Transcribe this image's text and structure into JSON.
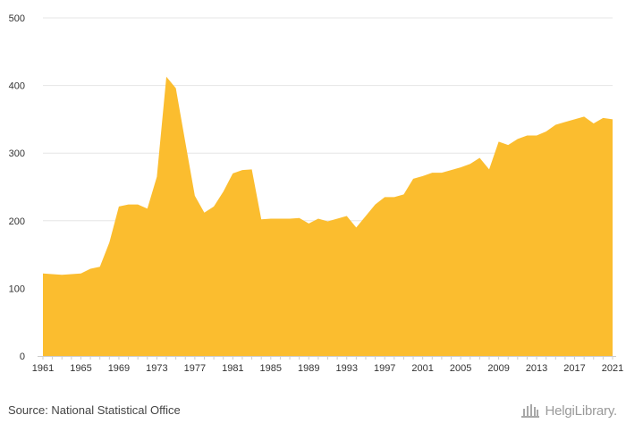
{
  "chart_data": {
    "type": "area",
    "title": "",
    "xlabel": "",
    "ylabel": "",
    "ylim": [
      0,
      500
    ],
    "xlim": [
      1961,
      2021
    ],
    "yticks": [
      0,
      100,
      200,
      300,
      400,
      500
    ],
    "xticks": [
      1961,
      1965,
      1969,
      1973,
      1977,
      1981,
      1985,
      1989,
      1993,
      1997,
      2001,
      2005,
      2009,
      2013,
      2017,
      2021
    ],
    "grid": true,
    "legend": "none",
    "color": "#fbbd2f",
    "x": [
      1961,
      1962,
      1963,
      1964,
      1965,
      1966,
      1967,
      1968,
      1969,
      1970,
      1971,
      1972,
      1973,
      1974,
      1975,
      1976,
      1977,
      1978,
      1979,
      1980,
      1981,
      1982,
      1983,
      1984,
      1985,
      1986,
      1987,
      1988,
      1989,
      1990,
      1991,
      1992,
      1993,
      1994,
      1995,
      1996,
      1997,
      1998,
      1999,
      2000,
      2001,
      2002,
      2003,
      2004,
      2005,
      2006,
      2007,
      2008,
      2009,
      2010,
      2011,
      2012,
      2013,
      2014,
      2015,
      2016,
      2017,
      2018,
      2019,
      2020,
      2021
    ],
    "values": [
      122,
      121,
      120,
      121,
      122,
      129,
      132,
      168,
      221,
      224,
      224,
      218,
      265,
      413,
      396,
      316,
      237,
      212,
      221,
      243,
      270,
      275,
      276,
      202,
      203,
      203,
      203,
      204,
      196,
      203,
      199,
      203,
      207,
      190,
      207,
      224,
      235,
      235,
      239,
      262,
      266,
      271,
      271,
      275,
      279,
      284,
      293,
      276,
      317,
      312,
      321,
      326,
      326,
      332,
      342,
      346,
      350,
      354,
      344,
      352,
      350
    ]
  },
  "footer": {
    "source": "Source: National Statistical Office",
    "logo": "HelgiLibrary."
  }
}
